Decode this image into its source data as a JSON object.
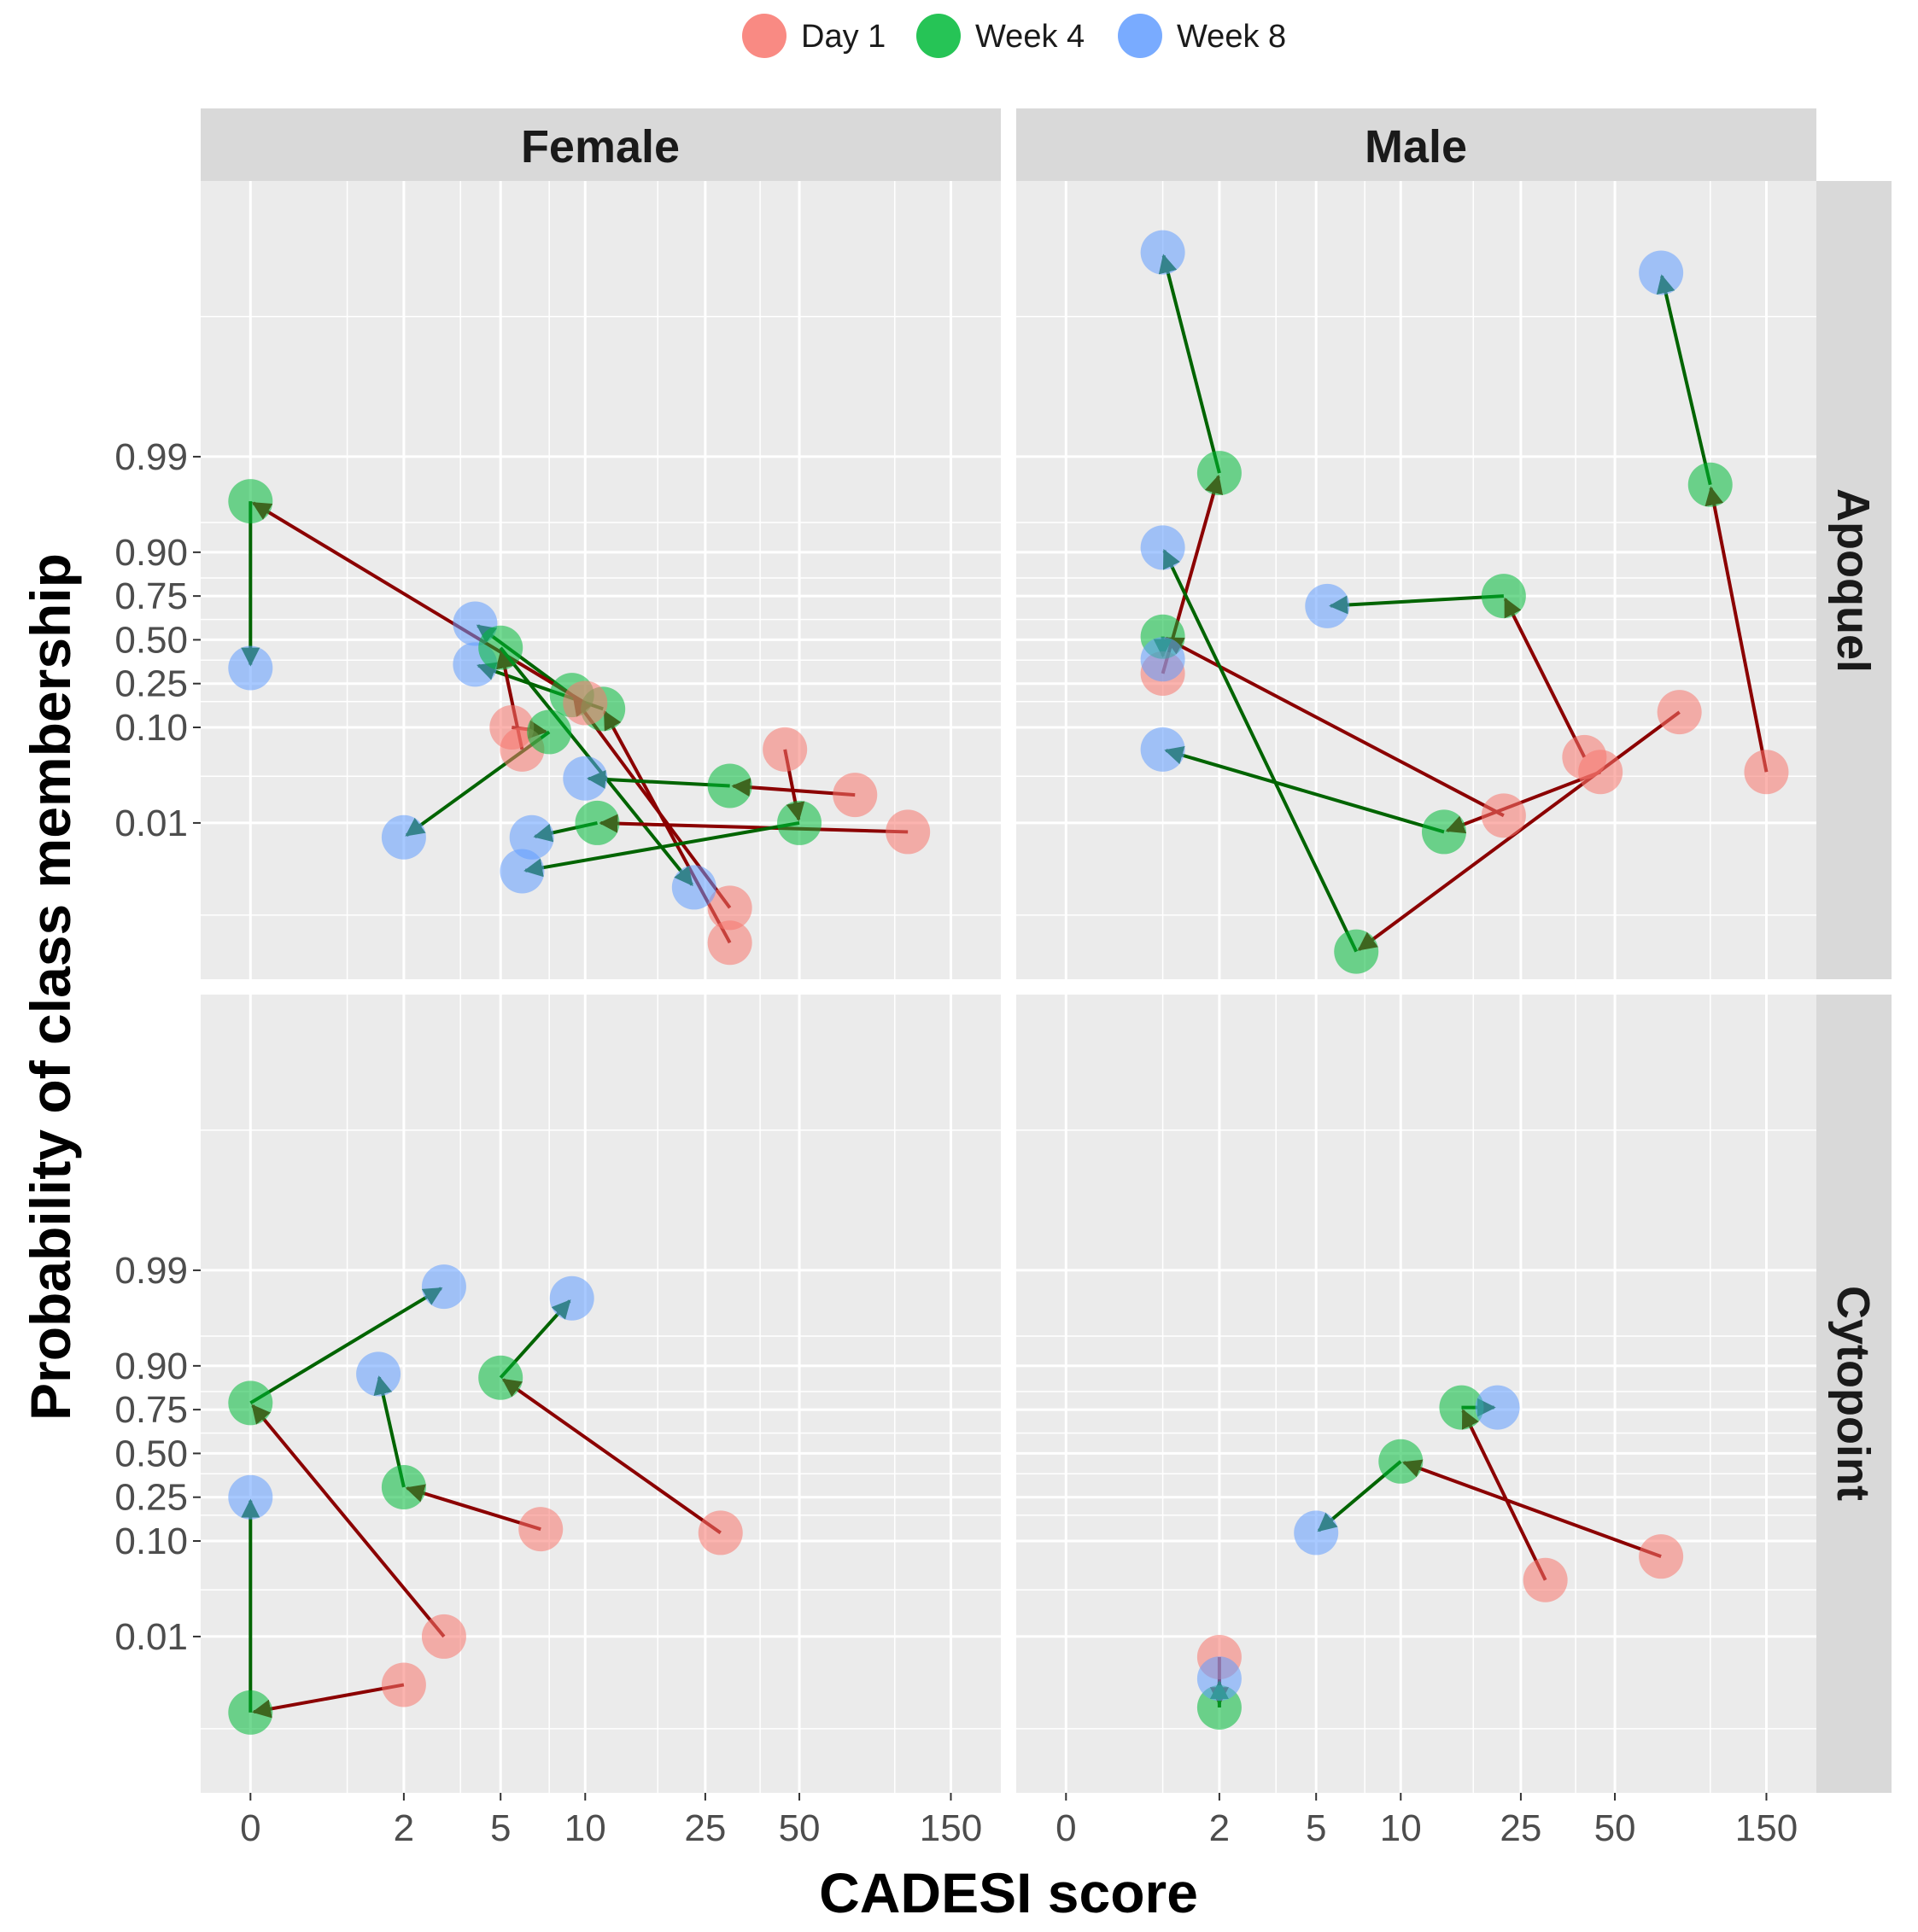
{
  "chart_data": {
    "type": "scatter",
    "xlabel": "CADESI score",
    "ylabel": "Probability of class membership",
    "x_scale": "pseudo-log",
    "y_scale": "logit",
    "x_ticks": [
      0,
      2,
      5,
      10,
      25,
      50,
      150
    ],
    "x_tick_labels": [
      "0",
      "2",
      "5",
      "10",
      "25",
      "50",
      "150"
    ],
    "x_minor_ticks": [
      1,
      3.5,
      7.5,
      17.5,
      37.5,
      100
    ],
    "x_range": [
      -0.3,
      215
    ],
    "y_ticks": [
      0.01,
      0.1,
      0.25,
      0.5,
      0.75,
      0.9,
      0.99
    ],
    "y_tick_labels": [
      "0.01",
      "0.10",
      "0.25",
      "0.50",
      "0.75",
      "0.90",
      "0.99"
    ],
    "y_minor_ticks": [
      0.001,
      0.0316,
      0.175,
      0.375,
      0.625,
      0.825,
      0.95,
      0.9997
    ],
    "y_range": [
      0.0002,
      0.99999
    ],
    "legend": {
      "position": "top",
      "entries": [
        {
          "label": "Day 1",
          "color": "#F8766D"
        },
        {
          "label": "Week 4",
          "color": "#00BA38"
        },
        {
          "label": "Week 8",
          "color": "#619CFF"
        }
      ]
    },
    "arrow_colors": {
      "day1_to_week4": "#8B0000",
      "week4_to_week8": "#006400"
    },
    "col_labels": [
      "Female",
      "Male"
    ],
    "row_labels": [
      "Apoquel",
      "Cytopoint"
    ],
    "panels": [
      {
        "sex": "Female",
        "treatment": "Apoquel",
        "trajectories": [
          {
            "day1": [
              30,
              0.0005
            ],
            "week4": [
              11.5,
              0.15
            ],
            "week8": [
              4,
              0.35
            ]
          },
          {
            "day1": [
              30,
              0.0012
            ],
            "week4": [
              9,
              0.2
            ],
            "week8": [
              4,
              0.6
            ]
          },
          {
            "day1": [
              10,
              0.17
            ],
            "week4": [
              0,
              0.97
            ],
            "week8": [
              0,
              0.33
            ]
          },
          {
            "day1": [
              6,
              0.06
            ],
            "week4": [
              5,
              0.45
            ],
            "week8": [
              23,
              0.002
            ]
          },
          {
            "day1": [
              110,
              0.008
            ],
            "week4": [
              11,
              0.01
            ],
            "week8": [
              6.5,
              0.007
            ]
          },
          {
            "day1": [
              45,
              0.06
            ],
            "week4": [
              50,
              0.01
            ],
            "week8": [
              6,
              0.003
            ]
          },
          {
            "day1": [
              75,
              0.02
            ],
            "week4": [
              30,
              0.025
            ],
            "week8": [
              10,
              0.03
            ]
          },
          {
            "day1": [
              5.5,
              0.1
            ],
            "week4": [
              7.5,
              0.09
            ],
            "week8": [
              2,
              0.007
            ]
          }
        ]
      },
      {
        "sex": "Male",
        "treatment": "Apoquel",
        "trajectories": [
          {
            "day1": [
              1,
              0.3
            ],
            "week4": [
              2,
              0.985
            ],
            "week8": [
              1,
              0.99994
            ]
          },
          {
            "day1": [
              40,
              0.05
            ],
            "week4": [
              22,
              0.75
            ],
            "week8": [
              5.5,
              0.7
            ]
          },
          {
            "day1": [
              22,
              0.012
            ],
            "week4": [
              1,
              0.52
            ],
            "week8": [
              1,
              0.38
            ]
          },
          {
            "day1": [
              45,
              0.035
            ],
            "week4": [
              14,
              0.008
            ],
            "week8": [
              1,
              0.06
            ]
          },
          {
            "day1": [
              80,
              0.14
            ],
            "week4": [
              7,
              0.0004
            ],
            "week8": [
              1,
              0.91
            ]
          },
          {
            "day1": [
              150,
              0.035
            ],
            "week4": [
              100,
              0.98
            ],
            "week8": [
              70,
              0.9999
            ]
          }
        ]
      },
      {
        "sex": "Female",
        "treatment": "Cytopoint",
        "trajectories": [
          {
            "day1": [
              3,
              0.01
            ],
            "week4": [
              0,
              0.78
            ],
            "week8": [
              3,
              0.985
            ]
          },
          {
            "day1": [
              2,
              0.003
            ],
            "week4": [
              0,
              0.0015
            ],
            "week8": [
              0,
              0.25
            ]
          },
          {
            "day1": [
              7,
              0.13
            ],
            "week4": [
              2,
              0.3
            ],
            "week8": [
              1.5,
              0.88
            ]
          },
          {
            "day1": [
              28,
              0.12
            ],
            "week4": [
              5,
              0.87
            ],
            "week8": [
              9,
              0.98
            ]
          }
        ]
      },
      {
        "sex": "Male",
        "treatment": "Cytopoint",
        "trajectories": [
          {
            "day1": [
              2,
              0.006
            ],
            "week4": [
              2,
              0.0017
            ],
            "week8": [
              2,
              0.0035
            ]
          },
          {
            "day1": [
              70,
              0.07
            ],
            "week4": [
              10,
              0.45
            ],
            "week8": [
              5,
              0.12
            ]
          },
          {
            "day1": [
              30,
              0.04
            ],
            "week4": [
              16,
              0.76
            ],
            "week8": [
              21,
              0.76
            ]
          }
        ]
      }
    ]
  }
}
